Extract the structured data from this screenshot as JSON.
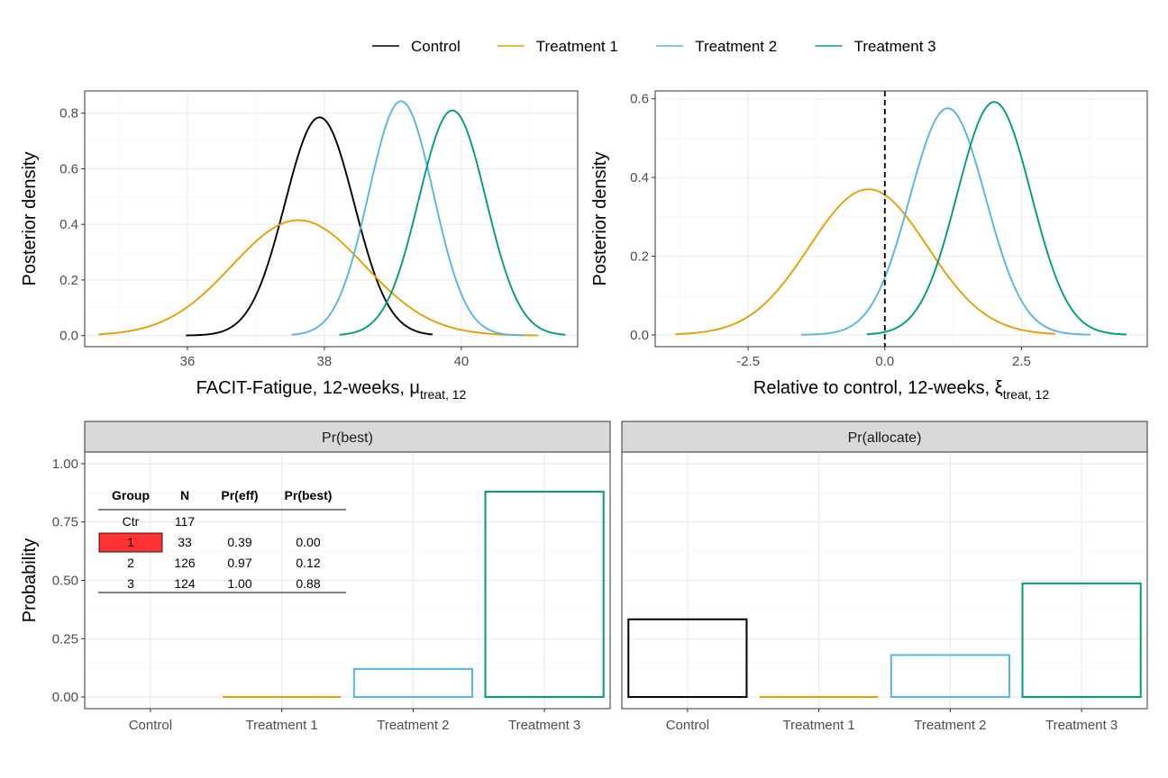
{
  "colors": {
    "Control": "#000000",
    "Treatment 1": "#E69F00",
    "Treatment 2": "#56B4E9",
    "Treatment 3": "#009E73",
    "highlight": "#FF3333"
  },
  "legend": {
    "entries": [
      "Control",
      "Treatment 1",
      "Treatment 2",
      "Treatment 3"
    ],
    "position": "top"
  },
  "chart_data": [
    {
      "type": "line",
      "xlabel": "FACIT-Fatigue, 12-weeks, μ",
      "xlabel_sub": "treat, 12",
      "ylabel": "Posterior density",
      "xlim": [
        34.5,
        41.7
      ],
      "ylim": [
        -0.04,
        0.88
      ],
      "xticks": [
        36,
        38,
        40
      ],
      "yticks": [
        0.0,
        0.2,
        0.4,
        0.6,
        0.8
      ],
      "ytick_labels": [
        "0.0",
        "0.2",
        "0.4",
        "0.6",
        "0.8"
      ],
      "grid": true,
      "series": [
        {
          "name": "Control",
          "curve": "normal",
          "mean": 37.93,
          "sd": 0.505,
          "peak": 0.785,
          "x_range": [
            35.98,
            39.58
          ]
        },
        {
          "name": "Treatment 1",
          "curve": "normal",
          "mean": 37.62,
          "sd": 0.97,
          "peak": 0.415,
          "x_range": [
            34.7,
            41.12
          ]
        },
        {
          "name": "Treatment 2",
          "curve": "normal",
          "mean": 39.12,
          "sd": 0.473,
          "peak": 0.843,
          "x_range": [
            37.52,
            40.92
          ]
        },
        {
          "name": "Treatment 3",
          "curve": "normal",
          "mean": 39.87,
          "sd": 0.49,
          "peak": 0.81,
          "x_range": [
            38.22,
            41.52
          ]
        }
      ]
    },
    {
      "type": "line",
      "xlabel": "Relative to control, 12-weeks, ξ",
      "xlabel_sub": "treat, 12",
      "ylabel": "Posterior density",
      "xlim": [
        -4.2,
        4.8
      ],
      "ylim": [
        -0.03,
        0.62
      ],
      "xticks": [
        -2.5,
        0.0,
        2.5
      ],
      "xtick_labels": [
        "-2.5",
        "0.0",
        "2.5"
      ],
      "yticks": [
        0.0,
        0.2,
        0.4,
        0.6
      ],
      "ytick_labels": [
        "0.0",
        "0.2",
        "0.4",
        "0.6"
      ],
      "grid": true,
      "reference_line": {
        "x": 0,
        "style": "dashed"
      },
      "series": [
        {
          "name": "Treatment 1",
          "curve": "normal",
          "mean": -0.3,
          "sd": 1.08,
          "peak": 0.37,
          "x_range": [
            -3.83,
            3.12
          ]
        },
        {
          "name": "Treatment 2",
          "curve": "normal",
          "mean": 1.15,
          "sd": 0.693,
          "peak": 0.576,
          "x_range": [
            -1.53,
            3.76
          ]
        },
        {
          "name": "Treatment 3",
          "curve": "normal",
          "mean": 2.0,
          "sd": 0.675,
          "peak": 0.592,
          "x_range": [
            -0.33,
            4.42
          ]
        }
      ]
    },
    {
      "type": "bar",
      "strip_label": "Pr(best)",
      "ylabel": "Probability",
      "categories": [
        "Control",
        "Treatment 1",
        "Treatment 2",
        "Treatment 3"
      ],
      "values": [
        null,
        0.0,
        0.12,
        0.88
      ],
      "ylim": [
        -0.05,
        1.05
      ],
      "yticks": [
        0.0,
        0.25,
        0.5,
        0.75,
        1.0
      ],
      "ytick_labels": [
        "0.00",
        "0.25",
        "0.50",
        "0.75",
        "1.00"
      ],
      "grid": true,
      "table": {
        "headers": [
          "Group",
          "N",
          "Pr(eff)",
          "Pr(best)"
        ],
        "rows": [
          [
            "Ctr",
            "117",
            "",
            ""
          ],
          [
            "1",
            "33",
            "0.39",
            "0.00"
          ],
          [
            "2",
            "126",
            "0.97",
            "0.12"
          ],
          [
            "3",
            "124",
            "1.00",
            "0.88"
          ]
        ],
        "highlight_row": 1
      }
    },
    {
      "type": "bar",
      "strip_label": "Pr(allocate)",
      "categories": [
        "Control",
        "Treatment 1",
        "Treatment 2",
        "Treatment 3"
      ],
      "values": [
        0.333,
        0.0,
        0.18,
        0.487
      ],
      "ylim": [
        -0.05,
        1.05
      ],
      "yticks": [
        0.0,
        0.25,
        0.5,
        0.75,
        1.0
      ],
      "grid": true
    }
  ]
}
